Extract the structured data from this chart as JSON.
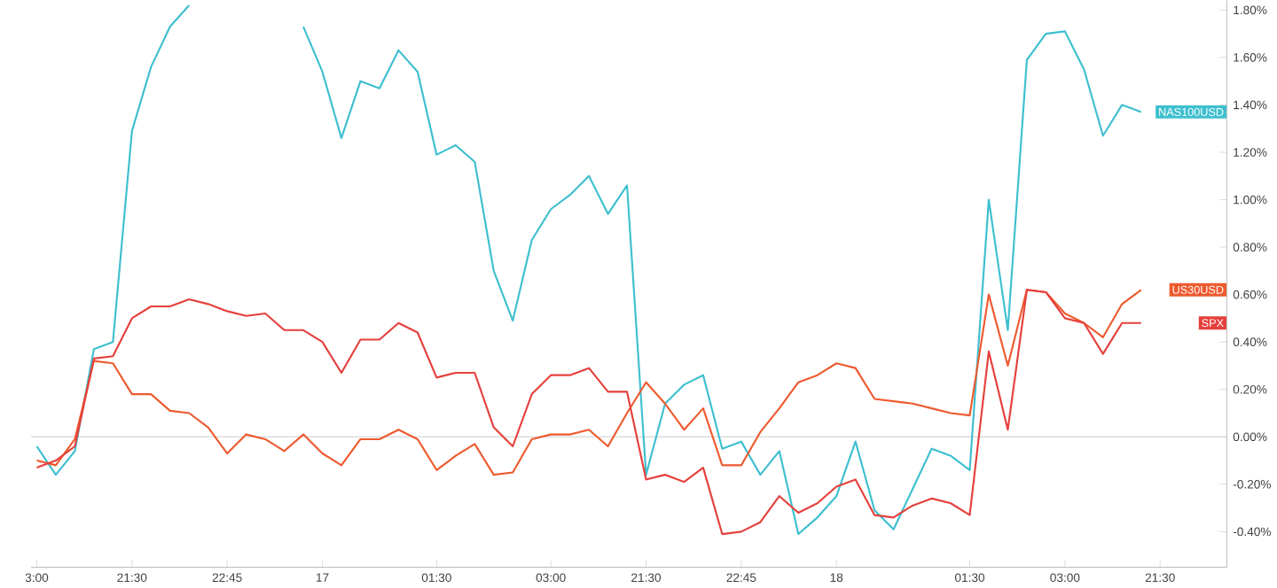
{
  "chart_data": {
    "type": "line",
    "categories": [
      "3:00",
      null,
      null,
      null,
      null,
      "21:30",
      null,
      null,
      null,
      null,
      "22:45",
      null,
      null,
      null,
      null,
      "17",
      null,
      null,
      null,
      null,
      null,
      "01:30",
      null,
      null,
      null,
      null,
      null,
      "03:00",
      null,
      null,
      null,
      null,
      "21:30",
      null,
      null,
      null,
      null,
      "22:45",
      null,
      null,
      null,
      null,
      "18",
      null,
      null,
      null,
      null,
      null,
      null,
      "01:30",
      null,
      null,
      null,
      null,
      "03:00",
      null,
      null,
      null,
      null,
      "21:30"
    ],
    "series": [
      {
        "name": "NAS100USD",
        "color": "#3ebfcf",
        "values": [
          -0.04,
          -0.16,
          -0.06,
          0.37,
          0.4,
          1.29,
          1.56,
          1.73,
          1.82,
          null,
          null,
          null,
          null,
          null,
          1.73,
          1.54,
          1.26,
          1.5,
          1.47,
          1.63,
          1.54,
          1.19,
          1.23,
          1.16,
          0.7,
          0.49,
          0.83,
          0.96,
          1.02,
          1.1,
          0.94,
          1.06,
          -0.16,
          0.14,
          0.22,
          0.26,
          -0.05,
          -0.02,
          -0.16,
          -0.06,
          -0.41,
          -0.34,
          -0.25,
          -0.02,
          -0.31,
          -0.39,
          -0.22,
          -0.05,
          -0.08,
          -0.14,
          1.0,
          0.45,
          1.59,
          1.7,
          1.71,
          1.55,
          1.27,
          1.4,
          1.37,
          null
        ]
      },
      {
        "name": "US30USD",
        "color": "#ee5a2f",
        "values": [
          -0.1,
          -0.12,
          -0.01,
          0.32,
          0.31,
          0.18,
          0.18,
          0.11,
          0.1,
          0.04,
          -0.07,
          0.01,
          -0.01,
          -0.06,
          0.01,
          -0.07,
          -0.12,
          -0.01,
          -0.01,
          0.03,
          -0.01,
          -0.14,
          -0.08,
          -0.03,
          -0.16,
          -0.15,
          -0.01,
          0.01,
          0.01,
          0.03,
          -0.04,
          0.1,
          0.23,
          0.14,
          0.03,
          0.12,
          -0.12,
          -0.12,
          0.02,
          0.12,
          0.23,
          0.26,
          0.31,
          0.29,
          0.16,
          0.15,
          0.14,
          0.12,
          0.1,
          0.09,
          0.6,
          0.3,
          0.62,
          0.61,
          0.52,
          0.48,
          0.42,
          0.56,
          0.62,
          null
        ]
      },
      {
        "name": "SPX",
        "color": "#e5403c",
        "values": [
          -0.13,
          -0.1,
          -0.04,
          0.33,
          0.34,
          0.5,
          0.55,
          0.55,
          0.58,
          0.56,
          0.53,
          0.51,
          0.52,
          0.45,
          0.45,
          0.4,
          0.27,
          0.41,
          0.41,
          0.48,
          0.44,
          0.25,
          0.27,
          0.27,
          0.04,
          -0.04,
          0.18,
          0.26,
          0.26,
          0.29,
          0.19,
          0.19,
          -0.18,
          -0.16,
          -0.19,
          -0.13,
          -0.41,
          -0.4,
          -0.36,
          -0.25,
          -0.32,
          -0.28,
          -0.21,
          -0.18,
          -0.33,
          -0.34,
          -0.29,
          -0.26,
          -0.28,
          -0.33,
          0.36,
          0.03,
          0.62,
          0.61,
          0.5,
          0.48,
          0.35,
          0.48,
          0.48,
          null
        ]
      }
    ],
    "ylim": [
      -0.55,
      1.84
    ],
    "yticks": [
      {
        "value": -0.4,
        "label": "-0.40%"
      },
      {
        "value": -0.2,
        "label": "-0.20%"
      },
      {
        "value": 0,
        "label": "0.00%"
      },
      {
        "value": 0.2,
        "label": "0.20%"
      },
      {
        "value": 0.4,
        "label": "0.40%"
      },
      {
        "value": 0.6,
        "label": "0.60%"
      },
      {
        "value": 0.8,
        "label": "0.80%"
      },
      {
        "value": 1.0,
        "label": "1.00%"
      },
      {
        "value": 1.2,
        "label": "1.20%"
      },
      {
        "value": 1.4,
        "label": "1.40%"
      },
      {
        "value": 1.6,
        "label": "1.60%"
      },
      {
        "value": 1.8,
        "label": "1.80%"
      }
    ],
    "ref_lines": [
      {
        "axis": "y",
        "value": 0,
        "color": "#cccccc"
      }
    ],
    "grid": false,
    "legend": false,
    "marker": "none",
    "line_style": "solid"
  }
}
